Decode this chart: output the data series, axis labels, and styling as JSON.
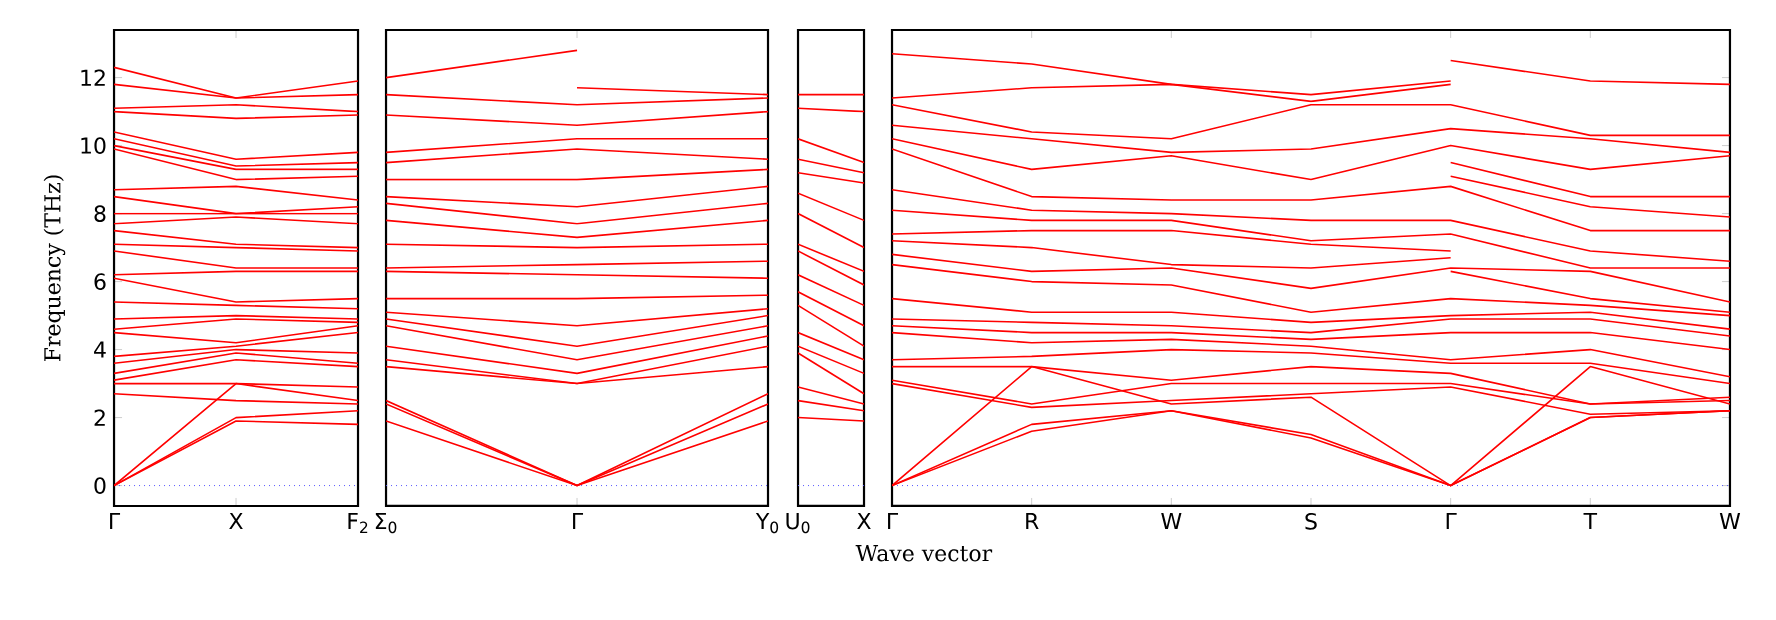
{
  "chart_data": [
    {
      "type": "line",
      "ylabel": "Frequency (THz)",
      "categories": [
        "Γ",
        "X",
        "F$_{2}$"
      ],
      "ylim": [
        -0.6,
        13.4
      ],
      "yticks": [
        0,
        2,
        4,
        6,
        8,
        10,
        12
      ],
      "ref_lines": [
        {
          "axis": "y",
          "value": 0,
          "color": "#5555ff",
          "line_style": "dotted"
        }
      ],
      "series": [
        {
          "color": "#ff0000",
          "values": [
            12.3,
            11.4,
            11.9
          ]
        },
        {
          "color": "#ff0000",
          "values": [
            11.8,
            11.4,
            11.5
          ]
        },
        {
          "color": "#ff0000",
          "values": [
            11.1,
            11.2,
            11.0
          ]
        },
        {
          "color": "#ff0000",
          "values": [
            11.0,
            10.8,
            10.9
          ]
        },
        {
          "color": "#ff0000",
          "values": [
            10.4,
            9.6,
            9.8
          ]
        },
        {
          "color": "#ff0000",
          "values": [
            10.2,
            9.4,
            9.5
          ]
        },
        {
          "color": "#ff0000",
          "values": [
            10.0,
            9.3,
            9.3
          ]
        },
        {
          "color": "#ff0000",
          "values": [
            9.9,
            9.0,
            9.1
          ]
        },
        {
          "color": "#ff0000",
          "values": [
            8.7,
            8.8,
            8.4
          ]
        },
        {
          "color": "#ff0000",
          "values": [
            8.5,
            8.0,
            8.2
          ]
        },
        {
          "color": "#ff0000",
          "values": [
            8.0,
            8.0,
            8.0
          ]
        },
        {
          "color": "#ff0000",
          "values": [
            7.7,
            7.9,
            7.7
          ]
        },
        {
          "color": "#ff0000",
          "values": [
            7.5,
            7.1,
            7.0
          ]
        },
        {
          "color": "#ff0000",
          "values": [
            7.1,
            7.0,
            6.9
          ]
        },
        {
          "color": "#ff0000",
          "values": [
            6.9,
            6.4,
            6.4
          ]
        },
        {
          "color": "#ff0000",
          "values": [
            6.2,
            6.3,
            6.3
          ]
        },
        {
          "color": "#ff0000",
          "values": [
            6.1,
            5.4,
            5.5
          ]
        },
        {
          "color": "#ff0000",
          "values": [
            5.4,
            5.3,
            5.2
          ]
        },
        {
          "color": "#ff0000",
          "values": [
            4.9,
            5.0,
            4.9
          ]
        },
        {
          "color": "#ff0000",
          "values": [
            4.6,
            4.9,
            4.8
          ]
        },
        {
          "color": "#ff0000",
          "values": [
            4.5,
            4.2,
            4.7
          ]
        },
        {
          "color": "#ff0000",
          "values": [
            3.8,
            4.1,
            4.5
          ]
        },
        {
          "color": "#ff0000",
          "values": [
            3.6,
            4.0,
            3.9
          ]
        },
        {
          "color": "#ff0000",
          "values": [
            3.3,
            3.9,
            3.6
          ]
        },
        {
          "color": "#ff0000",
          "values": [
            3.1,
            3.7,
            3.5
          ]
        },
        {
          "color": "#ff0000",
          "values": [
            3.0,
            3.0,
            2.9
          ]
        },
        {
          "color": "#ff0000",
          "values": [
            2.7,
            2.5,
            2.4
          ]
        },
        {
          "color": "#ff0000",
          "values": [
            0,
            3.0,
            2.5
          ]
        },
        {
          "color": "#ff0000",
          "values": [
            0,
            2.0,
            2.2
          ]
        },
        {
          "color": "#ff0000",
          "values": [
            0,
            1.9,
            1.8
          ]
        }
      ]
    },
    {
      "type": "line",
      "categories": [
        "Σ$_{0}$",
        "Γ",
        "Y$_{0}$"
      ],
      "ylim": [
        -0.6,
        13.4
      ],
      "tick_labels": "x",
      "ref_lines": [
        {
          "axis": "y",
          "value": 0,
          "color": "#5555ff",
          "line_style": "dotted"
        }
      ],
      "series": [
        {
          "color": "#ff0000",
          "values": [
            12.0,
            12.8,
            null
          ]
        },
        {
          "color": "#ff0000",
          "values": [
            null,
            11.7,
            11.5
          ]
        },
        {
          "color": "#ff0000",
          "values": [
            11.5,
            11.2,
            11.4
          ]
        },
        {
          "color": "#ff0000",
          "values": [
            10.9,
            10.6,
            11.0
          ]
        },
        {
          "color": "#ff0000",
          "values": [
            9.8,
            10.2,
            10.2
          ]
        },
        {
          "color": "#ff0000",
          "values": [
            9.5,
            9.9,
            9.6
          ]
        },
        {
          "color": "#ff0000",
          "values": [
            9.0,
            9.0,
            9.3
          ]
        },
        {
          "color": "#ff0000",
          "values": [
            8.5,
            8.2,
            8.8
          ]
        },
        {
          "color": "#ff0000",
          "values": [
            8.3,
            7.7,
            8.3
          ]
        },
        {
          "color": "#ff0000",
          "values": [
            7.8,
            7.3,
            7.8
          ]
        },
        {
          "color": "#ff0000",
          "values": [
            7.1,
            7.0,
            7.1
          ]
        },
        {
          "color": "#ff0000",
          "values": [
            6.4,
            6.5,
            6.6
          ]
        },
        {
          "color": "#ff0000",
          "values": [
            6.3,
            6.2,
            6.1
          ]
        },
        {
          "color": "#ff0000",
          "values": [
            5.5,
            5.5,
            5.6
          ]
        },
        {
          "color": "#ff0000",
          "values": [
            5.1,
            4.7,
            5.2
          ]
        },
        {
          "color": "#ff0000",
          "values": [
            4.9,
            4.1,
            5.0
          ]
        },
        {
          "color": "#ff0000",
          "values": [
            4.7,
            3.7,
            4.7
          ]
        },
        {
          "color": "#ff0000",
          "values": [
            4.1,
            3.3,
            4.4
          ]
        },
        {
          "color": "#ff0000",
          "values": [
            3.7,
            3.0,
            4.1
          ]
        },
        {
          "color": "#ff0000",
          "values": [
            3.5,
            3.0,
            3.5
          ]
        },
        {
          "color": "#ff0000",
          "values": [
            2.5,
            0,
            2.7
          ]
        },
        {
          "color": "#ff0000",
          "values": [
            2.4,
            0,
            2.4
          ]
        },
        {
          "color": "#ff0000",
          "values": [
            1.9,
            0,
            1.9
          ]
        }
      ]
    },
    {
      "type": "line",
      "categories": [
        "U$_{0}$",
        "X"
      ],
      "ylim": [
        -0.6,
        13.4
      ],
      "tick_labels": "x",
      "ref_lines": [
        {
          "axis": "y",
          "value": 0,
          "color": "#5555ff",
          "line_style": "dotted"
        }
      ],
      "series": [
        {
          "color": "#ff0000",
          "values": [
            11.5,
            11.5
          ]
        },
        {
          "color": "#ff0000",
          "values": [
            11.1,
            11.0
          ]
        },
        {
          "color": "#ff0000",
          "values": [
            10.2,
            9.5
          ]
        },
        {
          "color": "#ff0000",
          "values": [
            9.6,
            9.2
          ]
        },
        {
          "color": "#ff0000",
          "values": [
            9.2,
            8.9
          ]
        },
        {
          "color": "#ff0000",
          "values": [
            8.6,
            7.8
          ]
        },
        {
          "color": "#ff0000",
          "values": [
            8.0,
            7.0
          ]
        },
        {
          "color": "#ff0000",
          "values": [
            7.1,
            6.3
          ]
        },
        {
          "color": "#ff0000",
          "values": [
            6.9,
            5.9
          ]
        },
        {
          "color": "#ff0000",
          "values": [
            6.2,
            5.3
          ]
        },
        {
          "color": "#ff0000",
          "values": [
            5.7,
            4.7
          ]
        },
        {
          "color": "#ff0000",
          "values": [
            5.3,
            4.1
          ]
        },
        {
          "color": "#ff0000",
          "values": [
            4.5,
            3.7
          ]
        },
        {
          "color": "#ff0000",
          "values": [
            4.1,
            3.3
          ]
        },
        {
          "color": "#ff0000",
          "values": [
            3.9,
            2.7
          ]
        },
        {
          "color": "#ff0000",
          "values": [
            2.9,
            2.4
          ]
        },
        {
          "color": "#ff0000",
          "values": [
            2.5,
            2.2
          ]
        },
        {
          "color": "#ff0000",
          "values": [
            2.0,
            1.9
          ]
        }
      ]
    },
    {
      "type": "line",
      "xlabel": "Wave vector",
      "categories": [
        "Γ",
        "R",
        "W",
        "S",
        "Γ",
        "T",
        "W"
      ],
      "ylim": [
        -0.6,
        13.4
      ],
      "yticks": [
        0,
        2,
        4,
        6,
        8,
        10,
        12
      ],
      "tick_labels": "x",
      "ref_lines": [
        {
          "axis": "y",
          "value": 0,
          "color": "#5555ff",
          "line_style": "dotted"
        }
      ],
      "series": [
        {
          "color": "#ff0000",
          "values": [
            12.7,
            12.4,
            11.8,
            11.5,
            11.9,
            null,
            null
          ]
        },
        {
          "color": "#ff0000",
          "values": [
            11.4,
            11.7,
            11.8,
            11.3,
            11.8,
            null,
            null
          ]
        },
        {
          "color": "#ff0000",
          "values": [
            11.2,
            10.4,
            10.2,
            11.2,
            11.2,
            10.3,
            10.3
          ]
        },
        {
          "color": "#ff0000",
          "values": [
            10.6,
            10.2,
            9.8,
            9.9,
            10.5,
            10.2,
            9.8
          ]
        },
        {
          "color": "#ff0000",
          "values": [
            10.2,
            9.3,
            9.7,
            9.0,
            10.0,
            9.3,
            9.7
          ]
        },
        {
          "color": "#ff0000",
          "values": [
            9.9,
            8.5,
            8.4,
            8.4,
            8.8,
            7.5,
            7.5
          ]
        },
        {
          "color": "#ff0000",
          "values": [
            8.7,
            8.1,
            8.0,
            7.8,
            7.8,
            6.9,
            6.6
          ]
        },
        {
          "color": "#ff0000",
          "values": [
            8.1,
            7.8,
            7.8,
            7.2,
            7.4,
            6.4,
            6.4
          ]
        },
        {
          "color": "#ff0000",
          "values": [
            7.4,
            7.5,
            7.5,
            7.1,
            6.9,
            null,
            null
          ]
        },
        {
          "color": "#ff0000",
          "values": [
            7.2,
            7.0,
            6.5,
            6.4,
            6.7,
            null,
            null
          ]
        },
        {
          "color": "#ff0000",
          "values": [
            6.8,
            6.3,
            6.4,
            5.8,
            6.4,
            6.3,
            5.4
          ]
        },
        {
          "color": "#ff0000",
          "values": [
            6.5,
            6.0,
            5.9,
            5.1,
            5.5,
            5.3,
            5.0
          ]
        },
        {
          "color": "#ff0000",
          "values": [
            5.5,
            5.1,
            5.1,
            4.8,
            5.0,
            5.1,
            4.6
          ]
        },
        {
          "color": "#ff0000",
          "values": [
            4.9,
            4.8,
            4.7,
            4.5,
            4.9,
            4.9,
            4.4
          ]
        },
        {
          "color": "#ff0000",
          "values": [
            4.7,
            4.5,
            4.5,
            4.3,
            4.5,
            4.5,
            4.0
          ]
        },
        {
          "color": "#ff0000",
          "values": [
            4.5,
            4.2,
            4.3,
            4.1,
            3.7,
            4.0,
            3.2
          ]
        },
        {
          "color": "#ff0000",
          "values": [
            3.7,
            3.8,
            4.0,
            3.9,
            3.6,
            3.6,
            3.0
          ]
        },
        {
          "color": "#ff0000",
          "values": [
            3.5,
            3.5,
            3.1,
            3.5,
            3.3,
            2.4,
            2.6
          ]
        },
        {
          "color": "#ff0000",
          "values": [
            3.1,
            2.4,
            3.0,
            3.0,
            3.0,
            2.4,
            2.5
          ]
        },
        {
          "color": "#ff0000",
          "values": [
            3.0,
            2.3,
            2.5,
            2.7,
            2.9,
            2.1,
            2.2
          ]
        },
        {
          "color": "#ff0000",
          "values": [
            0,
            3.5,
            2.4,
            2.6,
            0,
            3.5,
            2.4
          ]
        },
        {
          "color": "#ff0000",
          "values": [
            0,
            1.8,
            2.2,
            1.5,
            0,
            2.0,
            2.2
          ]
        },
        {
          "color": "#ff0000",
          "values": [
            0,
            1.6,
            2.2,
            1.4,
            0,
            2.0,
            2.2
          ]
        },
        {
          "color": "#ff0000",
          "values": [
            null,
            null,
            null,
            null,
            12.5,
            11.9,
            11.8
          ]
        },
        {
          "color": "#ff0000",
          "values": [
            null,
            null,
            null,
            null,
            9.5,
            8.5,
            8.5
          ]
        },
        {
          "color": "#ff0000",
          "values": [
            null,
            null,
            null,
            null,
            9.1,
            8.2,
            7.9
          ]
        },
        {
          "color": "#ff0000",
          "values": [
            null,
            null,
            null,
            null,
            6.3,
            5.5,
            5.1
          ]
        }
      ]
    }
  ]
}
